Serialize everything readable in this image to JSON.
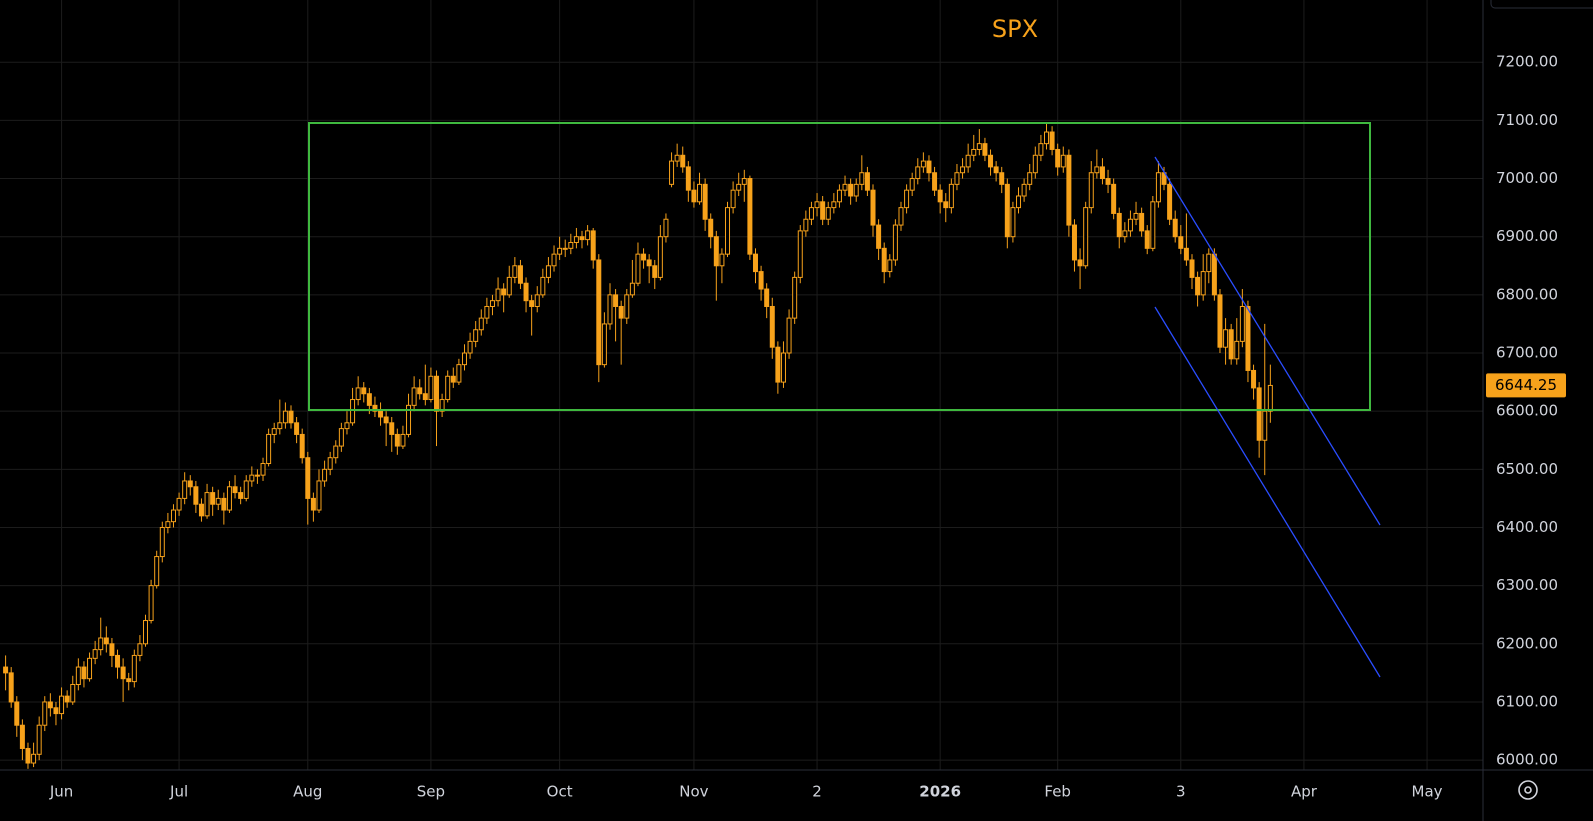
{
  "chart_data": {
    "type": "candlestick",
    "title": "SPX",
    "color": "#f7a21b",
    "grid": true,
    "xlim": [
      -1,
      264
    ],
    "ylim": [
      5983,
      7307
    ],
    "xticks": [
      {
        "value": 10,
        "label": "Jun"
      },
      {
        "value": 31,
        "label": "Jul"
      },
      {
        "value": 54,
        "label": "Aug"
      },
      {
        "value": 76,
        "label": "Sep"
      },
      {
        "value": 99,
        "label": "Oct"
      },
      {
        "value": 123,
        "label": "Nov"
      },
      {
        "value": 145,
        "label": "2"
      },
      {
        "value": 167,
        "label": "2026"
      },
      {
        "value": 188,
        "label": "Feb"
      },
      {
        "value": 210,
        "label": "3"
      },
      {
        "value": 232,
        "label": "Apr"
      },
      {
        "value": 254,
        "label": "May"
      }
    ],
    "yticks": [
      {
        "value": 6000,
        "label": "6000.00"
      },
      {
        "value": 6100,
        "label": "6100.00"
      },
      {
        "value": 6200,
        "label": "6200.00"
      },
      {
        "value": 6300,
        "label": "6300.00"
      },
      {
        "value": 6400,
        "label": "6400.00"
      },
      {
        "value": 6500,
        "label": "6500.00"
      },
      {
        "value": 6600,
        "label": "6600.00"
      },
      {
        "value": 6700,
        "label": "6700.00"
      },
      {
        "value": 6800,
        "label": "6800.00"
      },
      {
        "value": 6900,
        "label": "6900.00"
      },
      {
        "value": 7000,
        "label": "7000.00"
      },
      {
        "value": 7100,
        "label": "7100.00"
      },
      {
        "value": 7200,
        "label": "7200.00"
      }
    ],
    "ohlc": [
      [
        6160,
        6180,
        6120,
        6150
      ],
      [
        6150,
        6160,
        6090,
        6100
      ],
      [
        6100,
        6110,
        6040,
        6060
      ],
      [
        6060,
        6070,
        6000,
        6020
      ],
      [
        6020,
        6030,
        5985,
        5995
      ],
      [
        5995,
        6030,
        5988,
        6010
      ],
      [
        6010,
        6075,
        6000,
        6060
      ],
      [
        6060,
        6110,
        6050,
        6100
      ],
      [
        6100,
        6115,
        6075,
        6090
      ],
      [
        6090,
        6100,
        6060,
        6080
      ],
      [
        6080,
        6125,
        6070,
        6110
      ],
      [
        6110,
        6120,
        6090,
        6100
      ],
      [
        6100,
        6145,
        6095,
        6130
      ],
      [
        6130,
        6175,
        6120,
        6160
      ],
      [
        6160,
        6170,
        6125,
        6140
      ],
      [
        6140,
        6185,
        6135,
        6175
      ],
      [
        6175,
        6205,
        6165,
        6190
      ],
      [
        6190,
        6245,
        6180,
        6210
      ],
      [
        6210,
        6230,
        6185,
        6200
      ],
      [
        6200,
        6210,
        6160,
        6180
      ],
      [
        6180,
        6190,
        6140,
        6160
      ],
      [
        6160,
        6175,
        6100,
        6140
      ],
      [
        6140,
        6150,
        6120,
        6135
      ],
      [
        6135,
        6190,
        6125,
        6180
      ],
      [
        6180,
        6215,
        6170,
        6200
      ],
      [
        6200,
        6250,
        6195,
        6240
      ],
      [
        6240,
        6310,
        6235,
        6300
      ],
      [
        6300,
        6360,
        6295,
        6350
      ],
      [
        6350,
        6410,
        6340,
        6400
      ],
      [
        6400,
        6425,
        6390,
        6410
      ],
      [
        6410,
        6440,
        6400,
        6430
      ],
      [
        6430,
        6460,
        6420,
        6450
      ],
      [
        6450,
        6495,
        6440,
        6480
      ],
      [
        6480,
        6490,
        6455,
        6470
      ],
      [
        6470,
        6480,
        6425,
        6440
      ],
      [
        6440,
        6450,
        6410,
        6420
      ],
      [
        6420,
        6475,
        6415,
        6460
      ],
      [
        6460,
        6470,
        6420,
        6440
      ],
      [
        6440,
        6465,
        6430,
        6450
      ],
      [
        6450,
        6460,
        6405,
        6430
      ],
      [
        6430,
        6480,
        6425,
        6470
      ],
      [
        6470,
        6490,
        6450,
        6460
      ],
      [
        6460,
        6470,
        6440,
        6450
      ],
      [
        6450,
        6490,
        6445,
        6480
      ],
      [
        6480,
        6505,
        6470,
        6490
      ],
      [
        6490,
        6500,
        6475,
        6490
      ],
      [
        6490,
        6520,
        6480,
        6510
      ],
      [
        6510,
        6570,
        6505,
        6560
      ],
      [
        6560,
        6580,
        6545,
        6570
      ],
      [
        6570,
        6620,
        6560,
        6580
      ],
      [
        6580,
        6615,
        6570,
        6600
      ],
      [
        6600,
        6610,
        6570,
        6580
      ],
      [
        6580,
        6590,
        6545,
        6560
      ],
      [
        6560,
        6570,
        6510,
        6520
      ],
      [
        6520,
        6530,
        6405,
        6450
      ],
      [
        6450,
        6460,
        6410,
        6430
      ],
      [
        6430,
        6500,
        6425,
        6480
      ],
      [
        6480,
        6515,
        6470,
        6500
      ],
      [
        6500,
        6530,
        6490,
        6520
      ],
      [
        6520,
        6550,
        6510,
        6540
      ],
      [
        6540,
        6580,
        6530,
        6570
      ],
      [
        6570,
        6600,
        6560,
        6580
      ],
      [
        6580,
        6640,
        6575,
        6620
      ],
      [
        6620,
        6660,
        6610,
        6640
      ],
      [
        6640,
        6650,
        6615,
        6630
      ],
      [
        6630,
        6640,
        6595,
        6610
      ],
      [
        6610,
        6625,
        6590,
        6600
      ],
      [
        6600,
        6615,
        6575,
        6590
      ],
      [
        6590,
        6600,
        6540,
        6580
      ],
      [
        6580,
        6590,
        6530,
        6560
      ],
      [
        6560,
        6570,
        6525,
        6540
      ],
      [
        6540,
        6575,
        6535,
        6560
      ],
      [
        6560,
        6630,
        6555,
        6610
      ],
      [
        6610,
        6660,
        6600,
        6640
      ],
      [
        6640,
        6655,
        6620,
        6630
      ],
      [
        6630,
        6680,
        6610,
        6620
      ],
      [
        6620,
        6675,
        6615,
        6660
      ],
      [
        6660,
        6670,
        6540,
        6600
      ],
      [
        6600,
        6630,
        6590,
        6620
      ],
      [
        6620,
        6670,
        6615,
        6660
      ],
      [
        6660,
        6675,
        6640,
        6650
      ],
      [
        6650,
        6690,
        6645,
        6680
      ],
      [
        6680,
        6715,
        6670,
        6700
      ],
      [
        6700,
        6735,
        6690,
        6720
      ],
      [
        6720,
        6755,
        6710,
        6740
      ],
      [
        6740,
        6775,
        6730,
        6760
      ],
      [
        6760,
        6795,
        6750,
        6780
      ],
      [
        6780,
        6800,
        6765,
        6790
      ],
      [
        6790,
        6830,
        6780,
        6810
      ],
      [
        6810,
        6820,
        6770,
        6800
      ],
      [
        6800,
        6850,
        6795,
        6830
      ],
      [
        6830,
        6865,
        6820,
        6850
      ],
      [
        6850,
        6860,
        6810,
        6820
      ],
      [
        6820,
        6830,
        6770,
        6790
      ],
      [
        6790,
        6800,
        6730,
        6780
      ],
      [
        6780,
        6815,
        6770,
        6800
      ],
      [
        6800,
        6845,
        6795,
        6830
      ],
      [
        6830,
        6865,
        6820,
        6850
      ],
      [
        6850,
        6885,
        6840,
        6870
      ],
      [
        6870,
        6900,
        6860,
        6880
      ],
      [
        6880,
        6895,
        6865,
        6880
      ],
      [
        6880,
        6905,
        6870,
        6890
      ],
      [
        6890,
        6915,
        6880,
        6900
      ],
      [
        6900,
        6910,
        6880,
        6895
      ],
      [
        6895,
        6920,
        6885,
        6910
      ],
      [
        6910,
        6915,
        6845,
        6860
      ],
      [
        6860,
        6870,
        6650,
        6680
      ],
      [
        6680,
        6770,
        6675,
        6750
      ],
      [
        6750,
        6820,
        6740,
        6800
      ],
      [
        6800,
        6810,
        6720,
        6780
      ],
      [
        6780,
        6790,
        6680,
        6760
      ],
      [
        6760,
        6810,
        6750,
        6800
      ],
      [
        6800,
        6860,
        6795,
        6820
      ],
      [
        6820,
        6890,
        6815,
        6870
      ],
      [
        6870,
        6880,
        6845,
        6860
      ],
      [
        6860,
        6870,
        6820,
        6850
      ],
      [
        6850,
        6860,
        6810,
        6830
      ],
      [
        6830,
        6920,
        6825,
        6900
      ],
      [
        6900,
        6940,
        6890,
        6930
      ],
      [
        6990,
        7045,
        6985,
        7030
      ],
      [
        7030,
        7060,
        7020,
        7040
      ],
      [
        7040,
        7055,
        7010,
        7020
      ],
      [
        7020,
        7030,
        6960,
        6980
      ],
      [
        6980,
        6995,
        6950,
        6960
      ],
      [
        6960,
        7010,
        6955,
        6990
      ],
      [
        6990,
        7000,
        6910,
        6930
      ],
      [
        6930,
        6940,
        6880,
        6900
      ],
      [
        6900,
        6910,
        6790,
        6850
      ],
      [
        6850,
        6880,
        6820,
        6870
      ],
      [
        6870,
        6960,
        6865,
        6950
      ],
      [
        6950,
        6995,
        6940,
        6980
      ],
      [
        6980,
        7010,
        6970,
        6990
      ],
      [
        6990,
        7015,
        6960,
        7000
      ],
      [
        7000,
        7005,
        6860,
        6870
      ],
      [
        6870,
        6880,
        6820,
        6840
      ],
      [
        6840,
        6850,
        6790,
        6810
      ],
      [
        6810,
        6820,
        6760,
        6780
      ],
      [
        6780,
        6795,
        6690,
        6710
      ],
      [
        6710,
        6720,
        6630,
        6650
      ],
      [
        6650,
        6720,
        6640,
        6700
      ],
      [
        6700,
        6775,
        6690,
        6760
      ],
      [
        6760,
        6840,
        6750,
        6830
      ],
      [
        6830,
        6920,
        6820,
        6910
      ],
      [
        6910,
        6945,
        6900,
        6930
      ],
      [
        6930,
        6960,
        6920,
        6950
      ],
      [
        6950,
        6975,
        6935,
        6960
      ],
      [
        6960,
        6970,
        6920,
        6930
      ],
      [
        6930,
        6960,
        6920,
        6950
      ],
      [
        6950,
        6975,
        6940,
        6960
      ],
      [
        6960,
        6990,
        6950,
        6980
      ],
      [
        6980,
        7005,
        6970,
        6990
      ],
      [
        6990,
        7000,
        6955,
        6970
      ],
      [
        6970,
        7000,
        6960,
        6990
      ],
      [
        6990,
        7040,
        6980,
        7010
      ],
      [
        7010,
        7020,
        6970,
        6980
      ],
      [
        6980,
        6990,
        6900,
        6920
      ],
      [
        6920,
        6930,
        6860,
        6880
      ],
      [
        6880,
        6890,
        6820,
        6840
      ],
      [
        6840,
        6870,
        6830,
        6860
      ],
      [
        6860,
        6930,
        6850,
        6920
      ],
      [
        6920,
        6960,
        6910,
        6950
      ],
      [
        6950,
        6990,
        6940,
        6980
      ],
      [
        6980,
        7010,
        6970,
        7000
      ],
      [
        7000,
        7035,
        6990,
        7020
      ],
      [
        7020,
        7045,
        7010,
        7030
      ],
      [
        7030,
        7040,
        6995,
        7010
      ],
      [
        7010,
        7020,
        6970,
        6980
      ],
      [
        6980,
        6990,
        6940,
        6960
      ],
      [
        6960,
        6975,
        6925,
        6950
      ],
      [
        6950,
        7000,
        6940,
        6990
      ],
      [
        6990,
        7025,
        6980,
        7010
      ],
      [
        7010,
        7035,
        7000,
        7020
      ],
      [
        7020,
        7060,
        7010,
        7040
      ],
      [
        7040,
        7075,
        7030,
        7050
      ],
      [
        7050,
        7085,
        7040,
        7060
      ],
      [
        7060,
        7070,
        7030,
        7040
      ],
      [
        7040,
        7050,
        7005,
        7020
      ],
      [
        7020,
        7030,
        6995,
        7010
      ],
      [
        7010,
        7020,
        6975,
        6990
      ],
      [
        6990,
        7000,
        6880,
        6900
      ],
      [
        6900,
        6960,
        6890,
        6950
      ],
      [
        6950,
        6985,
        6940,
        6970
      ],
      [
        6970,
        7000,
        6960,
        6990
      ],
      [
        6990,
        7025,
        6980,
        7010
      ],
      [
        7010,
        7055,
        7000,
        7040
      ],
      [
        7040,
        7075,
        7030,
        7060
      ],
      [
        7060,
        7095,
        7050,
        7080
      ],
      [
        7080,
        7090,
        7040,
        7050
      ],
      [
        7050,
        7060,
        7005,
        7020
      ],
      [
        7020,
        7055,
        7010,
        7040
      ],
      [
        7040,
        7050,
        6900,
        6920
      ],
      [
        6920,
        6930,
        6840,
        6860
      ],
      [
        6860,
        6880,
        6810,
        6850
      ],
      [
        6850,
        6960,
        6845,
        6950
      ],
      [
        6950,
        7030,
        6940,
        7010
      ],
      [
        7010,
        7050,
        7000,
        7020
      ],
      [
        7020,
        7035,
        6990,
        7000
      ],
      [
        7000,
        7015,
        6975,
        6990
      ],
      [
        6990,
        7000,
        6930,
        6940
      ],
      [
        6940,
        6950,
        6880,
        6900
      ],
      [
        6900,
        6925,
        6890,
        6910
      ],
      [
        6910,
        6945,
        6900,
        6930
      ],
      [
        6930,
        6960,
        6920,
        6940
      ],
      [
        6940,
        6950,
        6900,
        6910
      ],
      [
        6910,
        6920,
        6870,
        6880
      ],
      [
        6880,
        6970,
        6875,
        6960
      ],
      [
        6960,
        7030,
        6950,
        7010
      ],
      [
        7010,
        7020,
        6980,
        6990
      ],
      [
        6990,
        7000,
        6920,
        6930
      ],
      [
        6930,
        6945,
        6890,
        6900
      ],
      [
        6900,
        6920,
        6870,
        6880
      ],
      [
        6880,
        6940,
        6850,
        6860
      ],
      [
        6860,
        6870,
        6810,
        6830
      ],
      [
        6830,
        6840,
        6780,
        6800
      ],
      [
        6800,
        6870,
        6790,
        6840
      ],
      [
        6840,
        6880,
        6820,
        6870
      ],
      [
        6870,
        6880,
        6790,
        6800
      ],
      [
        6800,
        6810,
        6700,
        6710
      ],
      [
        6710,
        6760,
        6680,
        6740
      ],
      [
        6740,
        6750,
        6680,
        6690
      ],
      [
        6690,
        6760,
        6680,
        6720
      ],
      [
        6720,
        6810,
        6710,
        6780
      ],
      [
        6780,
        6790,
        6650,
        6670
      ],
      [
        6670,
        6680,
        6620,
        6640
      ],
      [
        6640,
        6650,
        6520,
        6550
      ],
      [
        6550,
        6750,
        6490,
        6600
      ],
      [
        6600,
        6680,
        6580,
        6644.25
      ]
    ]
  }
}
